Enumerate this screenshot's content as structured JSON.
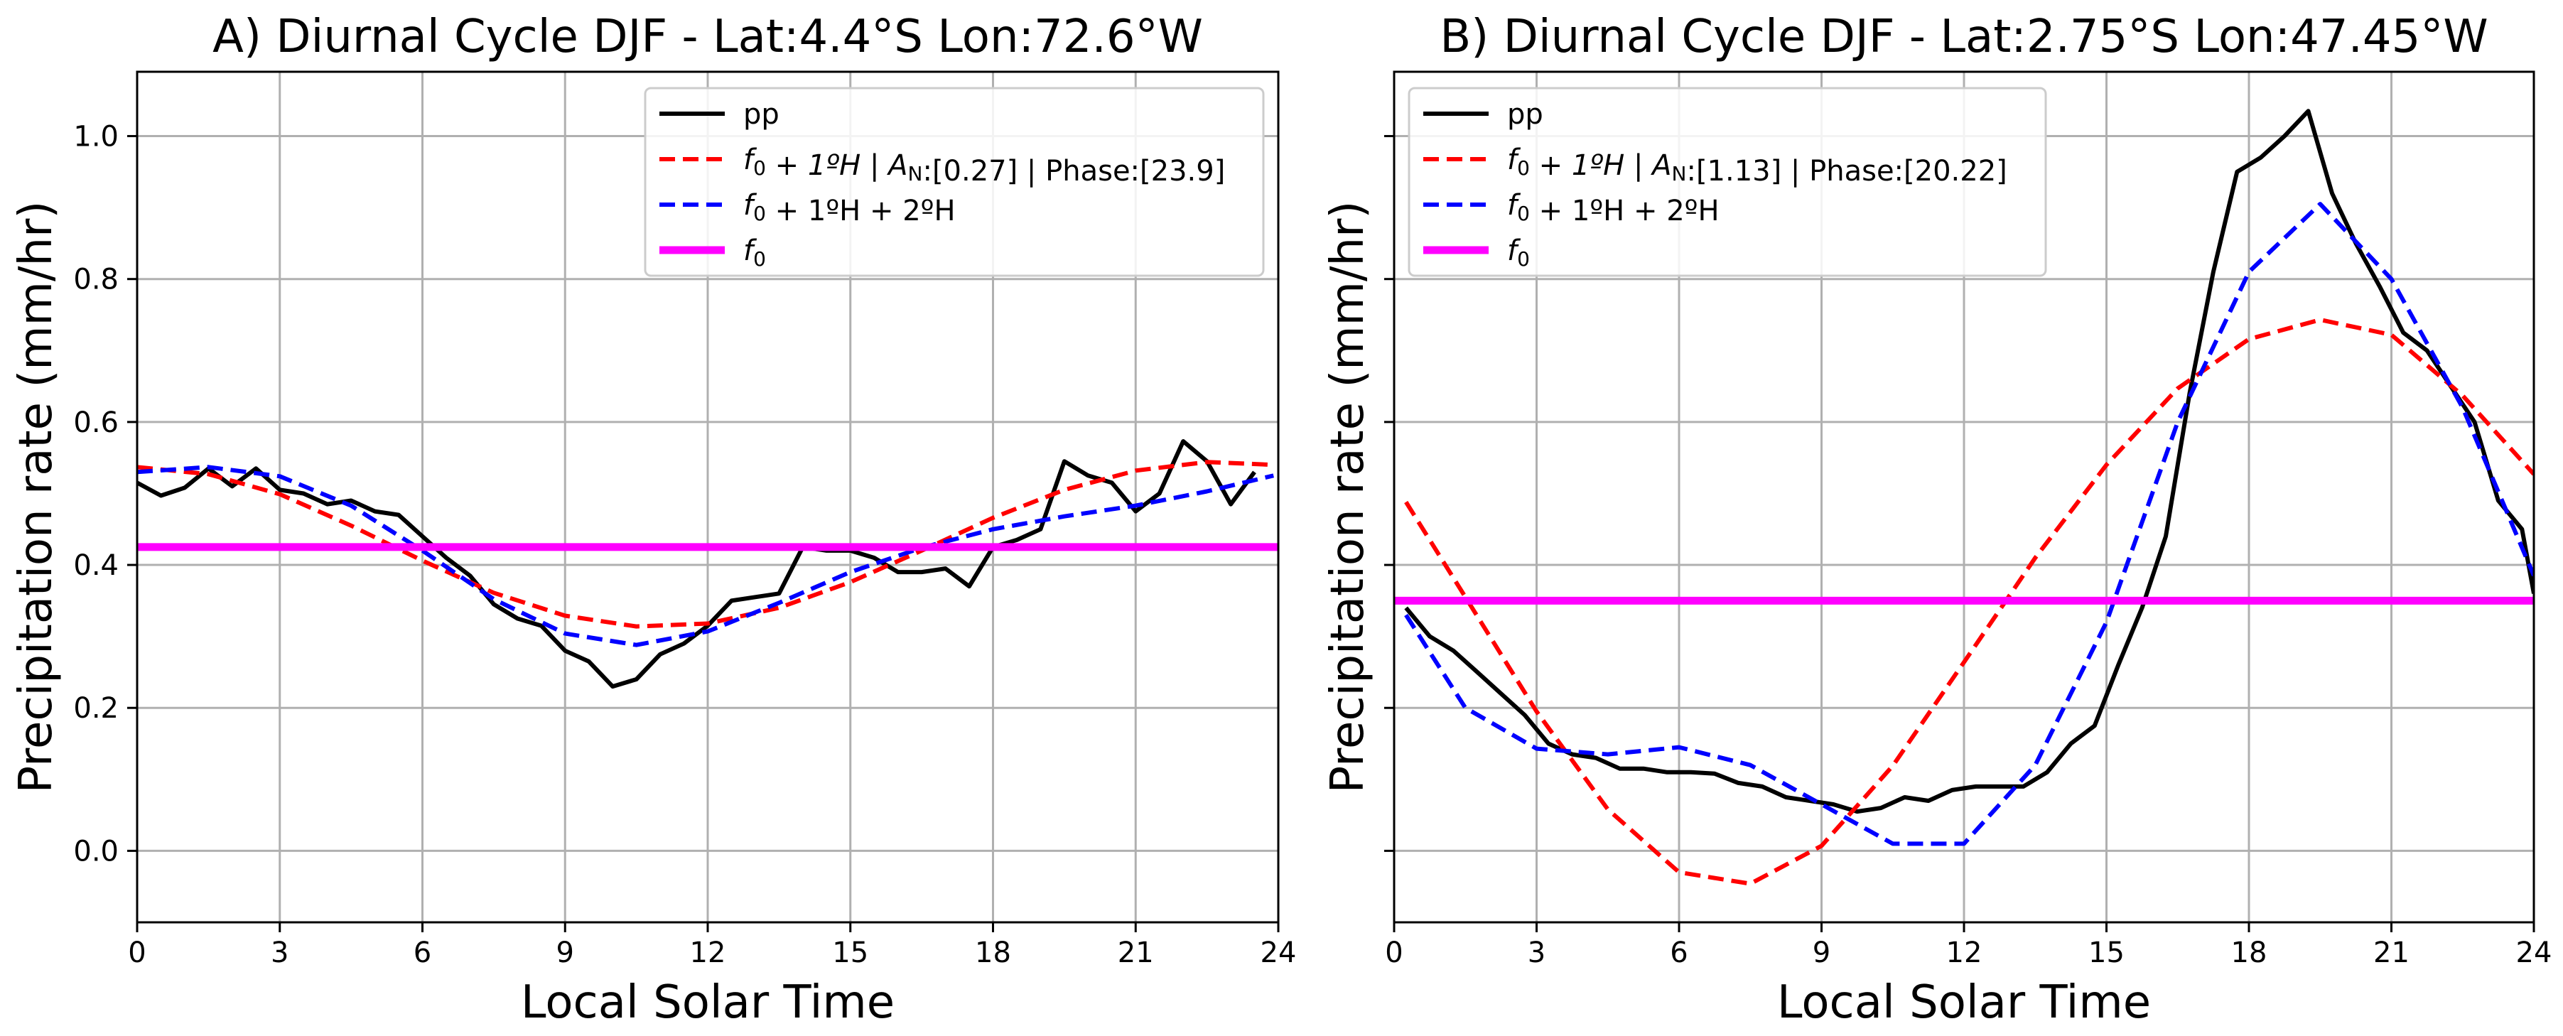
{
  "chart_data": [
    {
      "type": "line",
      "title": "A) Diurnal Cycle DJF - Lat:4.4°S Lon:72.6°W",
      "xlabel": "Local Solar Time",
      "ylabel": "Precipitation rate (mm/hr)",
      "xlim": [
        0,
        24
      ],
      "ylim": [
        -0.1,
        1.09
      ],
      "xticks": [
        0,
        3,
        6,
        9,
        12,
        15,
        18,
        21,
        24
      ],
      "yticks": [
        0.0,
        0.2,
        0.4,
        0.6,
        0.8,
        1.0
      ],
      "ytick_labels": [
        "0.0",
        "0.2",
        "0.4",
        "0.6",
        "0.8",
        "1.0"
      ],
      "show_ytick_labels": true,
      "grid": true,
      "legend_position": "upper-right",
      "series": [
        {
          "name": "pp",
          "color": "#000000",
          "style": "solid",
          "x": [
            0.0,
            0.5,
            1.0,
            1.5,
            2.0,
            2.5,
            3.0,
            3.5,
            4.0,
            4.5,
            5.0,
            5.5,
            6.0,
            6.5,
            7.0,
            7.5,
            8.0,
            8.5,
            9.0,
            9.5,
            10.0,
            10.5,
            11.0,
            11.5,
            12.0,
            12.5,
            13.0,
            13.5,
            14.0,
            14.5,
            15.0,
            15.5,
            16.0,
            16.5,
            17.0,
            17.5,
            18.0,
            18.5,
            19.0,
            19.5,
            20.0,
            20.5,
            21.0,
            21.5,
            22.0,
            22.5,
            23.0,
            23.5
          ],
          "values": [
            0.515,
            0.497,
            0.508,
            0.535,
            0.51,
            0.535,
            0.505,
            0.5,
            0.485,
            0.49,
            0.475,
            0.47,
            0.44,
            0.41,
            0.385,
            0.345,
            0.325,
            0.315,
            0.28,
            0.265,
            0.23,
            0.24,
            0.275,
            0.29,
            0.315,
            0.35,
            0.355,
            0.36,
            0.425,
            0.42,
            0.42,
            0.41,
            0.39,
            0.39,
            0.395,
            0.37,
            0.425,
            0.435,
            0.45,
            0.545,
            0.525,
            0.515,
            0.475,
            0.5,
            0.573,
            0.545,
            0.485,
            0.53
          ]
        },
        {
          "name": "f0 + 1ºH | AN:[0.27] | Phase:[23.9]",
          "color": "#ff0000",
          "style": "dashed",
          "x": [
            0,
            1.5,
            3,
            4.5,
            6,
            7.5,
            9,
            10.5,
            12,
            13.5,
            15,
            16.5,
            18,
            19.5,
            21,
            22.5,
            23.9
          ],
          "values": [
            0.537,
            0.527,
            0.499,
            0.455,
            0.406,
            0.361,
            0.329,
            0.314,
            0.318,
            0.34,
            0.376,
            0.42,
            0.466,
            0.505,
            0.532,
            0.544,
            0.54
          ]
        },
        {
          "name": "f0 + 1ºH + 2ºH",
          "color": "#0000ff",
          "style": "dashed",
          "x": [
            0,
            1.5,
            3,
            4.5,
            6,
            7.5,
            9,
            10.5,
            12,
            13.5,
            15,
            16.5,
            18,
            19.5,
            21,
            22.5,
            23.9
          ],
          "values": [
            0.53,
            0.537,
            0.524,
            0.483,
            0.42,
            0.352,
            0.304,
            0.288,
            0.307,
            0.347,
            0.39,
            0.424,
            0.45,
            0.468,
            0.483,
            0.503,
            0.525
          ]
        },
        {
          "name": "f0",
          "color": "#ff00ff",
          "style": "thick",
          "x": [
            0,
            24
          ],
          "values": [
            0.425,
            0.425
          ]
        }
      ],
      "legend": [
        {
          "text": "pp",
          "color": "#000000",
          "style": "solid"
        },
        {
          "text_parts": [
            "f",
            "0",
            " + 1ºH | A",
            "N",
            ":[0.27] | Phase:[23.9]"
          ],
          "color": "#ff0000",
          "style": "dashed"
        },
        {
          "text_parts": [
            "f",
            "0",
            " + 1ºH + 2ºH"
          ],
          "color": "#0000ff",
          "style": "dashed"
        },
        {
          "text_parts": [
            "f",
            "0"
          ],
          "color": "#ff00ff",
          "style": "thick"
        }
      ]
    },
    {
      "type": "line",
      "title": "B) Diurnal Cycle DJF - Lat:2.75°S Lon:47.45°W",
      "xlabel": "Local Solar Time",
      "ylabel": "Precipitation rate (mm/hr)",
      "xlim": [
        0,
        24
      ],
      "ylim": [
        -0.1,
        1.09
      ],
      "xticks": [
        0,
        3,
        6,
        9,
        12,
        15,
        18,
        21,
        24
      ],
      "yticks": [
        0.0,
        0.2,
        0.4,
        0.6,
        0.8,
        1.0
      ],
      "ytick_labels": [
        "0.0",
        "0.2",
        "0.4",
        "0.6",
        "0.8",
        "1.0"
      ],
      "show_ytick_labels": false,
      "grid": true,
      "legend_position": "upper-left",
      "series": [
        {
          "name": "pp",
          "color": "#000000",
          "style": "solid",
          "x": [
            0.25,
            0.75,
            1.25,
            1.75,
            2.25,
            2.75,
            3.25,
            3.75,
            4.25,
            4.75,
            5.25,
            5.75,
            6.25,
            6.75,
            7.25,
            7.75,
            8.25,
            8.75,
            9.25,
            9.75,
            10.25,
            10.75,
            11.25,
            11.75,
            12.25,
            12.75,
            13.25,
            13.75,
            14.25,
            14.75,
            15.25,
            15.75,
            16.25,
            16.75,
            17.25,
            17.75,
            18.25,
            18.75,
            19.25,
            19.75,
            20.25,
            20.75,
            21.25,
            21.75,
            22.25,
            22.75,
            23.25,
            23.75,
            24.0
          ],
          "values": [
            0.34,
            0.3,
            0.28,
            0.25,
            0.22,
            0.19,
            0.15,
            0.135,
            0.13,
            0.115,
            0.115,
            0.11,
            0.11,
            0.108,
            0.095,
            0.09,
            0.075,
            0.07,
            0.065,
            0.055,
            0.06,
            0.075,
            0.07,
            0.085,
            0.09,
            0.09,
            0.09,
            0.11,
            0.15,
            0.175,
            0.26,
            0.34,
            0.44,
            0.64,
            0.81,
            0.95,
            0.97,
            1.0,
            1.035,
            0.92,
            0.85,
            0.79,
            0.725,
            0.7,
            0.65,
            0.6,
            0.49,
            0.45,
            0.36
          ]
        },
        {
          "name": "f0 + 1ºH | AN:[1.13] | Phase:[20.22]",
          "color": "#ff0000",
          "style": "dashed",
          "x": [
            0.25,
            1.5,
            3,
            4.5,
            6,
            7.5,
            9,
            10.5,
            12,
            13.5,
            15,
            16.5,
            18,
            19.5,
            21,
            22.5,
            24
          ],
          "values": [
            0.488,
            0.355,
            0.195,
            0.058,
            -0.03,
            -0.046,
            0.007,
            0.119,
            0.264,
            0.41,
            0.54,
            0.647,
            0.716,
            0.743,
            0.722,
            0.637,
            0.527
          ]
        },
        {
          "name": "f0 + 1ºH + 2ºH",
          "color": "#0000ff",
          "style": "dashed",
          "x": [
            0.25,
            1.5,
            3,
            4.5,
            6,
            7.5,
            9,
            10.5,
            12,
            13.5,
            15,
            16.5,
            18,
            19.5,
            21,
            22.5,
            24
          ],
          "values": [
            0.33,
            0.2,
            0.143,
            0.135,
            0.145,
            0.12,
            0.065,
            0.01,
            0.01,
            0.12,
            0.32,
            0.6,
            0.81,
            0.905,
            0.8,
            0.62,
            0.385
          ]
        },
        {
          "name": "f0",
          "color": "#ff00ff",
          "style": "thick",
          "x": [
            0,
            24
          ],
          "values": [
            0.35,
            0.35
          ]
        }
      ],
      "legend": [
        {
          "text": "pp",
          "color": "#000000",
          "style": "solid"
        },
        {
          "text_parts": [
            "f",
            "0",
            " + 1ºH | A",
            "N",
            ":[1.13] | Phase:[20.22]"
          ],
          "color": "#ff0000",
          "style": "dashed"
        },
        {
          "text_parts": [
            "f",
            "0",
            " + 1ºH + 2ºH"
          ],
          "color": "#0000ff",
          "style": "dashed"
        },
        {
          "text_parts": [
            "f",
            "0"
          ],
          "color": "#ff00ff",
          "style": "thick"
        }
      ]
    }
  ]
}
